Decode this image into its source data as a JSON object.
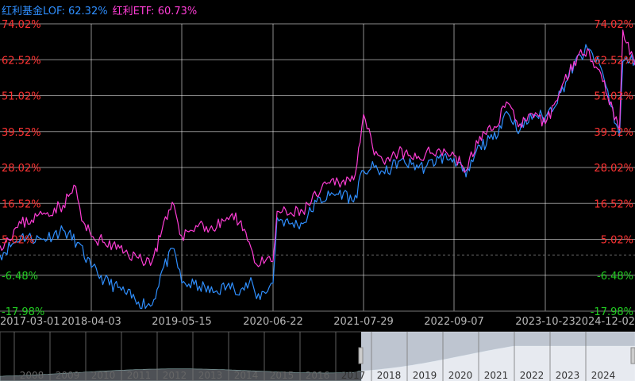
{
  "legend": {
    "lof": "红利基金LOF: 62.32%",
    "etf": "红利ETF: 60.73%"
  },
  "colors": {
    "lof": "#2f8fff",
    "etf": "#ff3dd6",
    "positive": "#ff3333",
    "negative": "#22cc22",
    "grid": "#ffffff",
    "zero": "#666666",
    "axis_text": "#b8b8b8",
    "navigator_fill": "#dfe8f5"
  },
  "chart_data": {
    "type": "line",
    "title": "",
    "xlabel": "",
    "ylabel": "",
    "ylim": [
      -17.98,
      74.02
    ],
    "y_ticks": [
      "74.02%",
      "62.52%",
      "51.02%",
      "39.52%",
      "28.02%",
      "16.52%",
      "5.02%",
      "-6.48%",
      "-17.98%"
    ],
    "x_ticks": [
      "2017-03-01",
      "2018-04-03",
      "2019-05-15",
      "2020-06-22",
      "2021-07-29",
      "2022-09-07",
      "2023-10-23",
      "2024-12-02"
    ],
    "grid": true,
    "series": [
      {
        "name": "红利基金LOF",
        "final": 62.32,
        "points": [
          [
            "2017-03-01",
            0
          ],
          [
            "2017-06-01",
            6
          ],
          [
            "2017-09-01",
            5
          ],
          [
            "2017-12-01",
            8
          ],
          [
            "2018-02-01",
            4
          ],
          [
            "2018-04-03",
            -4
          ],
          [
            "2018-06-01",
            -8
          ],
          [
            "2018-09-01",
            -12
          ],
          [
            "2018-11-01",
            -15
          ],
          [
            "2019-01-02",
            -16
          ],
          [
            "2019-02-15",
            -5
          ],
          [
            "2019-04-10",
            2
          ],
          [
            "2019-05-15",
            -9
          ],
          [
            "2019-08-01",
            -10
          ],
          [
            "2019-10-01",
            -12
          ],
          [
            "2019-12-01",
            -10
          ],
          [
            "2020-02-01",
            -11
          ],
          [
            "2020-03-23",
            -9
          ],
          [
            "2020-04-10",
            -14
          ],
          [
            "2020-06-22",
            -9
          ],
          [
            "2020-07-10",
            12
          ],
          [
            "2020-09-01",
            10
          ],
          [
            "2020-11-01",
            10
          ],
          [
            "2021-01-01",
            17
          ],
          [
            "2021-03-01",
            19
          ],
          [
            "2021-05-01",
            20
          ],
          [
            "2021-06-15",
            17
          ],
          [
            "2021-07-29",
            27
          ],
          [
            "2021-09-15",
            28
          ],
          [
            "2021-11-01",
            26
          ],
          [
            "2022-01-01",
            30
          ],
          [
            "2022-03-01",
            29
          ],
          [
            "2022-05-01",
            28
          ],
          [
            "2022-07-01",
            31
          ],
          [
            "2022-09-07",
            31
          ],
          [
            "2022-10-31",
            25
          ],
          [
            "2023-01-01",
            35
          ],
          [
            "2023-03-01",
            37
          ],
          [
            "2023-05-01",
            46
          ],
          [
            "2023-07-01",
            40
          ],
          [
            "2023-09-01",
            45
          ],
          [
            "2023-10-23",
            44
          ],
          [
            "2024-01-01",
            52
          ],
          [
            "2024-03-01",
            61
          ],
          [
            "2024-05-01",
            66
          ],
          [
            "2024-07-01",
            60
          ],
          [
            "2024-09-23",
            38
          ],
          [
            "2024-10-08",
            62
          ],
          [
            "2024-12-02",
            62.32
          ]
        ]
      },
      {
        "name": "红利ETF",
        "final": 60.73,
        "points": [
          [
            "2017-03-01",
            3
          ],
          [
            "2017-06-01",
            10
          ],
          [
            "2017-09-01",
            13
          ],
          [
            "2017-12-01",
            16
          ],
          [
            "2018-01-25",
            22
          ],
          [
            "2018-02-20",
            11
          ],
          [
            "2018-04-03",
            6
          ],
          [
            "2018-06-01",
            4
          ],
          [
            "2018-09-01",
            1
          ],
          [
            "2018-11-01",
            -1
          ],
          [
            "2019-01-02",
            -2
          ],
          [
            "2019-02-15",
            8
          ],
          [
            "2019-04-10",
            16
          ],
          [
            "2019-05-15",
            6
          ],
          [
            "2019-08-01",
            10
          ],
          [
            "2019-10-01",
            8
          ],
          [
            "2019-12-01",
            12
          ],
          [
            "2020-02-01",
            11
          ],
          [
            "2020-03-23",
            1
          ],
          [
            "2020-04-10",
            -3
          ],
          [
            "2020-06-22",
            -2
          ],
          [
            "2020-07-10",
            14
          ],
          [
            "2020-09-01",
            13
          ],
          [
            "2020-11-01",
            14
          ],
          [
            "2021-01-01",
            19
          ],
          [
            "2021-03-01",
            23
          ],
          [
            "2021-05-01",
            24
          ],
          [
            "2021-06-15",
            24
          ],
          [
            "2021-07-29",
            45
          ],
          [
            "2021-09-15",
            32
          ],
          [
            "2021-11-01",
            29
          ],
          [
            "2022-01-01",
            33
          ],
          [
            "2022-03-01",
            31
          ],
          [
            "2022-05-01",
            32
          ],
          [
            "2022-07-01",
            34
          ],
          [
            "2022-09-07",
            32
          ],
          [
            "2022-10-31",
            27
          ],
          [
            "2023-01-01",
            38
          ],
          [
            "2023-03-01",
            40
          ],
          [
            "2023-05-01",
            49
          ],
          [
            "2023-07-01",
            42
          ],
          [
            "2023-09-01",
            44
          ],
          [
            "2023-10-23",
            42
          ],
          [
            "2024-01-01",
            53
          ],
          [
            "2024-03-01",
            62
          ],
          [
            "2024-05-01",
            66
          ],
          [
            "2024-07-01",
            58
          ],
          [
            "2024-09-23",
            40
          ],
          [
            "2024-10-08",
            72
          ],
          [
            "2024-12-02",
            60.73
          ]
        ]
      }
    ]
  },
  "navigator": {
    "years": [
      "2008",
      "2009",
      "2010",
      "2011",
      "2012",
      "2013",
      "2014",
      "2015",
      "2016",
      "2017",
      "2018",
      "2019",
      "2020",
      "2021",
      "2022",
      "2023",
      "2024"
    ],
    "selected_range": [
      "2017-03-01",
      "2024-12-02"
    ]
  }
}
